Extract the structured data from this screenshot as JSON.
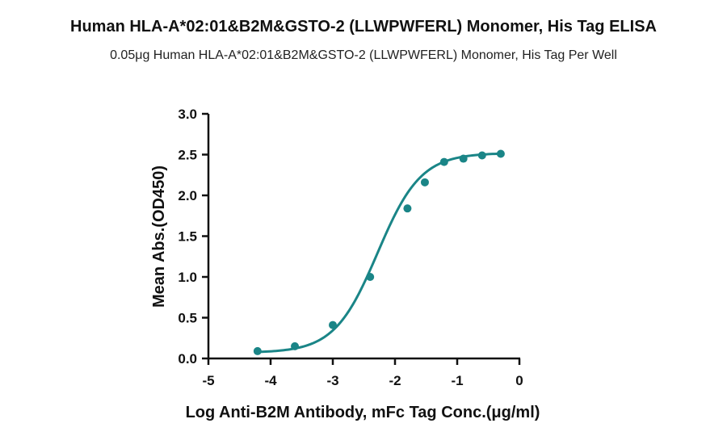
{
  "chart_data": {
    "type": "scatter",
    "title": "Human HLA-A*02:01&B2M&GSTO-2 (LLWPWFERL) Monomer, His Tag ELISA",
    "subtitle": "0.05μg Human HLA-A*02:01&B2M&GSTO-2 (LLWPWFERL) Monomer, His Tag Per Well",
    "xlabel": "Log Anti-B2M Antibody, mFc Tag Conc.(μg/ml)",
    "ylabel": "Mean Abs.(OD450)",
    "xlim": [
      -5,
      0
    ],
    "ylim": [
      0,
      3.0
    ],
    "x_ticks": [
      -5,
      -4,
      -3,
      -2,
      -1,
      0
    ],
    "x_tick_labels": [
      "-5",
      "-4",
      "-3",
      "-2",
      "-1",
      "0"
    ],
    "y_ticks": [
      0,
      0.5,
      1.0,
      1.5,
      2.0,
      2.5,
      3.0
    ],
    "y_tick_labels": [
      "0.0",
      "0.5",
      "1.0",
      "1.5",
      "2.0",
      "2.5",
      "3.0"
    ],
    "grid": false,
    "color": "#1a8587",
    "series": [
      {
        "x": [
          -4.21,
          -3.61,
          -3.0,
          -2.4,
          -1.8,
          -1.52,
          -1.21,
          -0.9,
          -0.6,
          -0.3
        ],
        "y": [
          0.09,
          0.15,
          0.41,
          1.0,
          1.84,
          2.16,
          2.41,
          2.45,
          2.49,
          2.51
        ]
      }
    ],
    "fit": {
      "bottom": 0.07,
      "top": 2.52,
      "log_ec50": -2.28,
      "hill_slope": 1.25
    }
  }
}
